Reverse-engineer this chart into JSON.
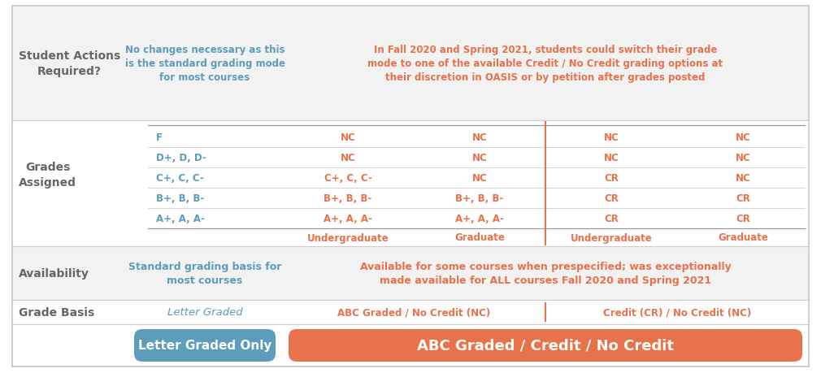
{
  "bg_color": "#ffffff",
  "header_blue_color": "#5b9dba",
  "header_orange_color": "#e8724a",
  "text_blue": "#5b9dba",
  "text_orange": "#e8724a",
  "text_dark": "#666666",
  "row_shaded": "#f2f2f2",
  "row_white": "#ffffff",
  "col_header_left_label": "Letter Graded Only",
  "col_header_right_label": "ABC Graded / Credit / No Credit",
  "row_grade_basis_label": "Grade Basis",
  "grade_basis_left": "Letter Graded",
  "grade_basis_mid": "ABC Graded / No Credit (NC)",
  "grade_basis_right": "Credit (CR) / No Credit (NC)",
  "row_availability_label": "Availability",
  "row_availability_left": "Standard grading basis for\nmost courses",
  "row_availability_right": "Available for some courses when prespecified; was exceptionally\nmade available for ALL courses Fall 2020 and Spring 2021",
  "grades_section_label": "Grades\nAssigned",
  "grades_sub_headers": [
    "Undergraduate",
    "Graduate",
    "Undergraduate",
    "Graduate"
  ],
  "grades_rows": [
    [
      "A+, A, A-",
      "A+, A, A-",
      "A+, A, A-",
      "CR",
      "CR"
    ],
    [
      "B+, B, B-",
      "B+, B, B-",
      "B+, B, B-",
      "CR",
      "CR"
    ],
    [
      "C+, C, C-",
      "C+, C, C-",
      "NC",
      "CR",
      "NC"
    ],
    [
      "D+, D, D-",
      "NC",
      "NC",
      "NC",
      "NC"
    ],
    [
      "F",
      "NC",
      "NC",
      "NC",
      "NC"
    ]
  ],
  "row_actions_label": "Student Actions\nRequired?",
  "row_actions_left": "No changes necessary as this\nis the standard grading mode\nfor most courses",
  "row_actions_right": "In Fall 2020 and Spring 2021, students could switch their grade\nmode to one of the available Credit / No Credit grading options at\ntheir discretion in OASIS or by petition after grades posted"
}
